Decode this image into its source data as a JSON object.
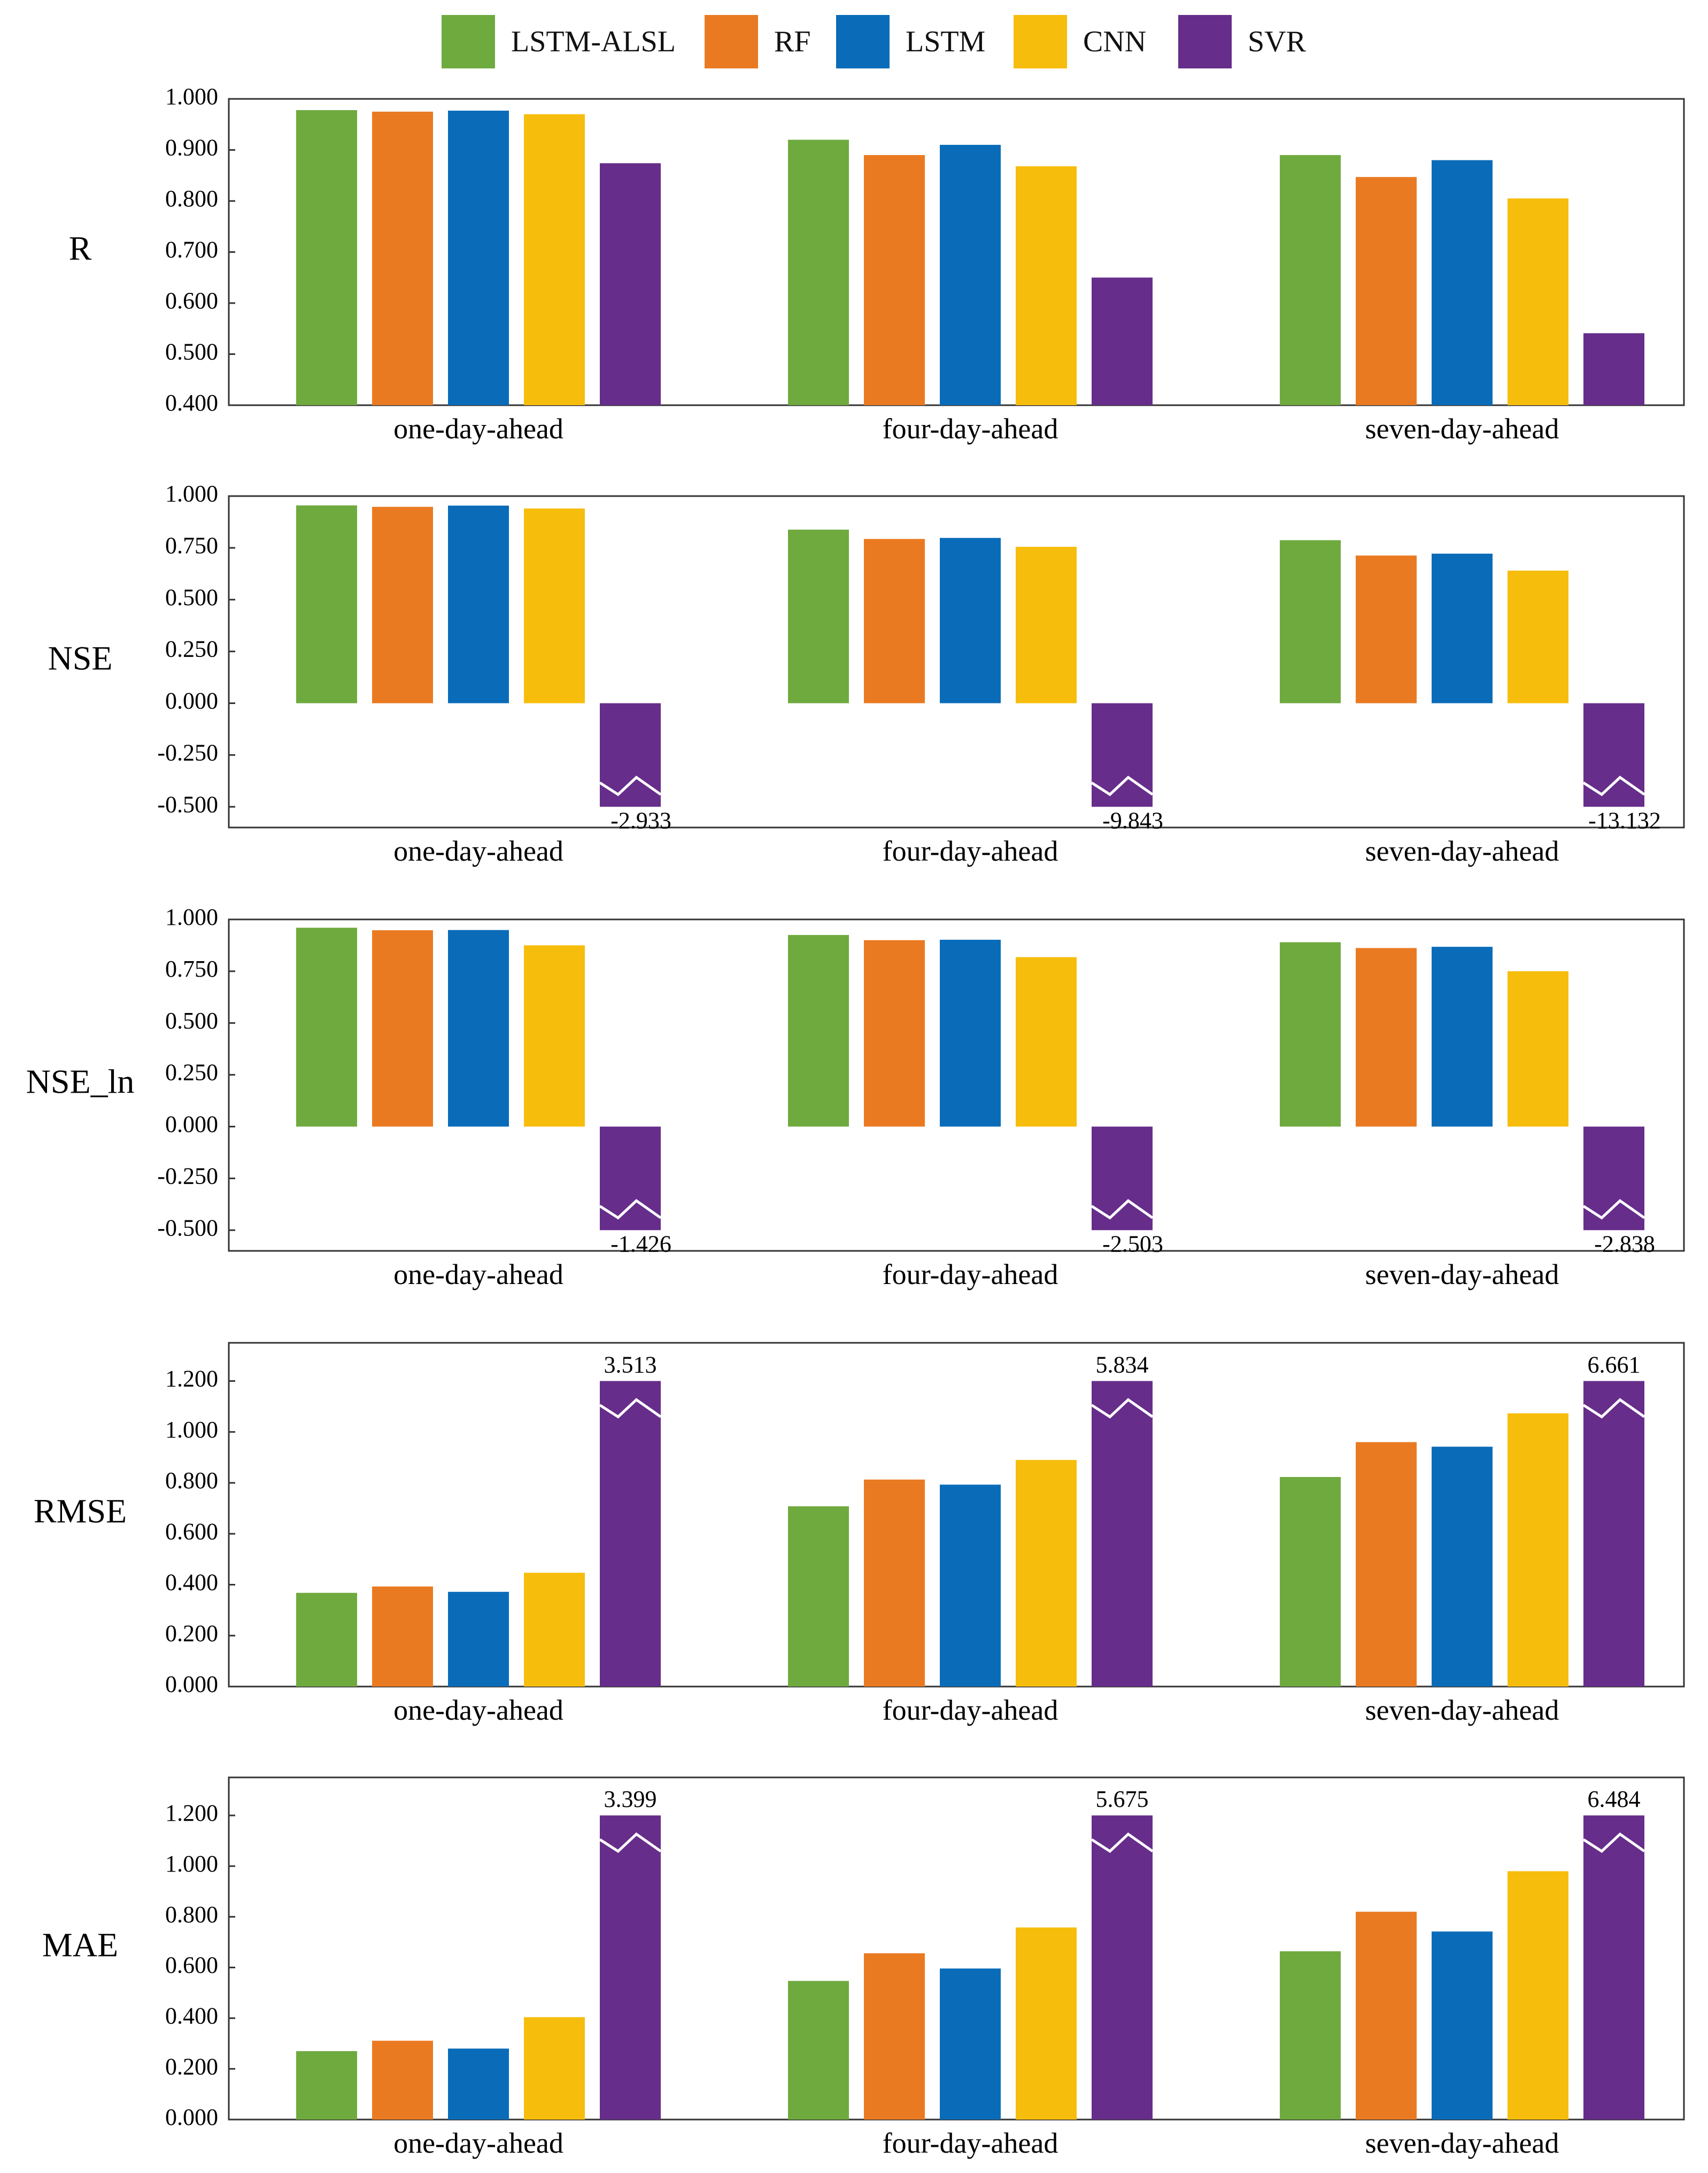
{
  "legend": [
    {
      "name": "LSTM-ALSL",
      "color": "#6faa3f"
    },
    {
      "name": "RF",
      "color": "#ea7a22"
    },
    {
      "name": "LSTM",
      "color": "#0a6cb9"
    },
    {
      "name": "CNN",
      "color": "#f7bd0c"
    },
    {
      "name": "SVR",
      "color": "#662d8a"
    }
  ],
  "chart_data": [
    {
      "type": "bar",
      "ylabel": "R",
      "categories": [
        "one-day-ahead",
        "four-day-ahead",
        "seven-day-ahead"
      ],
      "ylim": [
        0.4,
        1.0
      ],
      "yticks": [
        "0.400",
        "0.500",
        "0.600",
        "0.700",
        "0.800",
        "0.900",
        "1.000"
      ],
      "series": [
        {
          "name": "LSTM-ALSL",
          "values": [
            0.978,
            0.92,
            0.89
          ]
        },
        {
          "name": "RF",
          "values": [
            0.975,
            0.89,
            0.847
          ]
        },
        {
          "name": "LSTM",
          "values": [
            0.977,
            0.91,
            0.88
          ]
        },
        {
          "name": "CNN",
          "values": [
            0.97,
            0.868,
            0.805
          ]
        },
        {
          "name": "SVR",
          "values": [
            0.874,
            0.65,
            0.541
          ]
        }
      ]
    },
    {
      "type": "bar",
      "ylabel": "NSE",
      "categories": [
        "one-day-ahead",
        "four-day-ahead",
        "seven-day-ahead"
      ],
      "ylim": [
        -0.6,
        1.0
      ],
      "yticks": [
        "-0.500",
        "-0.250",
        "0.000",
        "0.250",
        "0.500",
        "0.750",
        "1.000"
      ],
      "series": [
        {
          "name": "LSTM-ALSL",
          "values": [
            0.955,
            0.838,
            0.787
          ]
        },
        {
          "name": "RF",
          "values": [
            0.948,
            0.793,
            0.713
          ]
        },
        {
          "name": "LSTM",
          "values": [
            0.954,
            0.798,
            0.722
          ]
        },
        {
          "name": "CNN",
          "values": [
            0.94,
            0.755,
            0.64
          ]
        },
        {
          "name": "SVR",
          "values": [
            -2.933,
            -9.843,
            -13.132
          ],
          "labels": [
            "-2.933",
            "-9.843",
            "-13.132"
          ],
          "broken": true
        }
      ]
    },
    {
      "type": "bar",
      "ylabel": "NSE_ln",
      "categories": [
        "one-day-ahead",
        "four-day-ahead",
        "seven-day-ahead"
      ],
      "ylim": [
        -0.6,
        1.0
      ],
      "yticks": [
        "-0.500",
        "-0.250",
        "0.000",
        "0.250",
        "0.500",
        "0.750",
        "1.000"
      ],
      "series": [
        {
          "name": "LSTM-ALSL",
          "values": [
            0.96,
            0.925,
            0.89
          ]
        },
        {
          "name": "RF",
          "values": [
            0.948,
            0.9,
            0.862
          ]
        },
        {
          "name": "LSTM",
          "values": [
            0.949,
            0.902,
            0.868
          ]
        },
        {
          "name": "CNN",
          "values": [
            0.875,
            0.818,
            0.75
          ]
        },
        {
          "name": "SVR",
          "values": [
            -1.426,
            -2.503,
            -2.838
          ],
          "labels": [
            "-1.426",
            "-2.503",
            "-2.838"
          ],
          "broken": true
        }
      ]
    },
    {
      "type": "bar",
      "ylabel": "RMSE",
      "categories": [
        "one-day-ahead",
        "four-day-ahead",
        "seven-day-ahead"
      ],
      "ylim": [
        0.0,
        1.35
      ],
      "yticks": [
        "0.000",
        "0.200",
        "0.400",
        "0.600",
        "0.800",
        "1.000",
        "1.200"
      ],
      "series": [
        {
          "name": "LSTM-ALSL",
          "values": [
            0.368,
            0.708,
            0.823
          ]
        },
        {
          "name": "RF",
          "values": [
            0.393,
            0.813,
            0.96
          ]
        },
        {
          "name": "LSTM",
          "values": [
            0.372,
            0.793,
            0.942
          ]
        },
        {
          "name": "CNN",
          "values": [
            0.447,
            0.89,
            1.073
          ]
        },
        {
          "name": "SVR",
          "values": [
            3.513,
            5.834,
            6.661
          ],
          "labels": [
            "3.513",
            "5.834",
            "6.661"
          ],
          "broken": true
        }
      ]
    },
    {
      "type": "bar",
      "ylabel": "MAE",
      "categories": [
        "one-day-ahead",
        "four-day-ahead",
        "seven-day-ahead"
      ],
      "ylim": [
        0.0,
        1.35
      ],
      "yticks": [
        "0.000",
        "0.200",
        "0.400",
        "0.600",
        "0.800",
        "1.000",
        "1.200"
      ],
      "series": [
        {
          "name": "LSTM-ALSL",
          "values": [
            0.27,
            0.547,
            0.664
          ]
        },
        {
          "name": "RF",
          "values": [
            0.311,
            0.656,
            0.82
          ]
        },
        {
          "name": "LSTM",
          "values": [
            0.28,
            0.596,
            0.742
          ]
        },
        {
          "name": "CNN",
          "values": [
            0.404,
            0.758,
            0.98
          ]
        },
        {
          "name": "SVR",
          "values": [
            3.399,
            5.675,
            6.484
          ],
          "labels": [
            "3.399",
            "5.675",
            "6.484"
          ],
          "broken": true
        }
      ]
    }
  ]
}
